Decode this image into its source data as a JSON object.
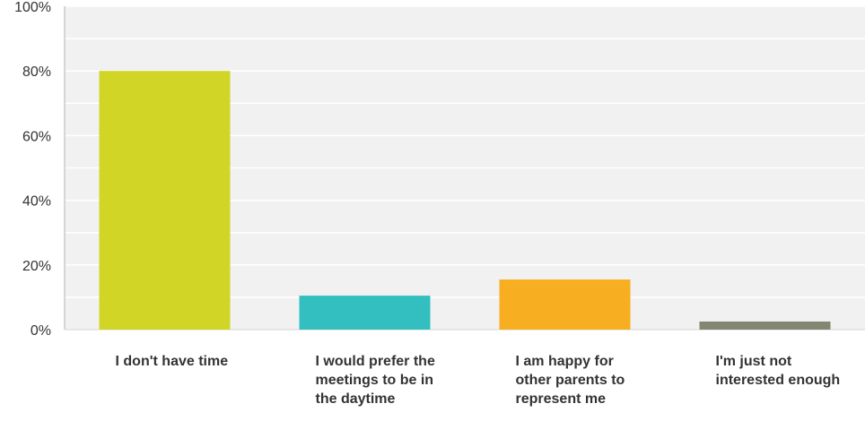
{
  "chart_data": {
    "type": "bar",
    "categories": [
      "I don't have time",
      "I would prefer the meetings to be in the daytime",
      "I am happy for other parents to represent me",
      "I'm just not interested enough"
    ],
    "values": [
      80,
      10.5,
      15.5,
      2.5
    ],
    "ylim": [
      0,
      100
    ],
    "yticks": [
      "0%",
      "20%",
      "40%",
      "60%",
      "80%",
      "100%"
    ],
    "grid": true,
    "colors": [
      "#d1d626",
      "#33bfc0",
      "#f7ae21",
      "#848674"
    ],
    "plot_background": "#f1f1f1",
    "title": "",
    "xlabel": "",
    "ylabel": ""
  }
}
